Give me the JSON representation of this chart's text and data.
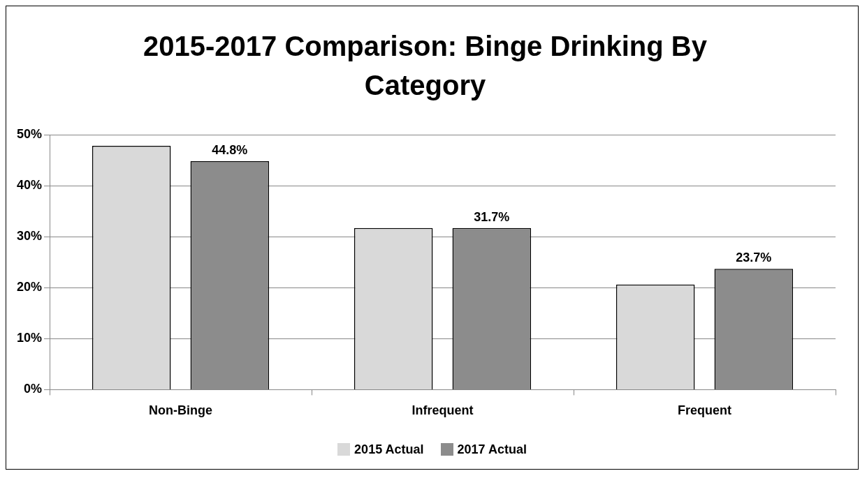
{
  "chart_data": {
    "type": "bar",
    "title": "2015-2017 Comparison: Binge Drinking By Category",
    "categories": [
      "Non-Binge",
      "Infrequent",
      "Frequent"
    ],
    "series": [
      {
        "name": "2015 Actual",
        "color": "#d9d9d9",
        "values": [
          47.8,
          31.7,
          20.6
        ]
      },
      {
        "name": "2017 Actual",
        "color": "#8c8c8c",
        "values": [
          44.8,
          31.7,
          23.7
        ],
        "value_labels": [
          "44.8%",
          "31.7%",
          "23.7%"
        ]
      }
    ],
    "ylim": [
      0,
      50
    ],
    "yticks": [
      {
        "value": 0,
        "label": "0%"
      },
      {
        "value": 10,
        "label": "10%"
      },
      {
        "value": 20,
        "label": "20%"
      },
      {
        "value": 30,
        "label": "30%"
      },
      {
        "value": 40,
        "label": "40%"
      },
      {
        "value": 50,
        "label": "50%"
      }
    ],
    "grid": "y",
    "legend": "bottom"
  }
}
